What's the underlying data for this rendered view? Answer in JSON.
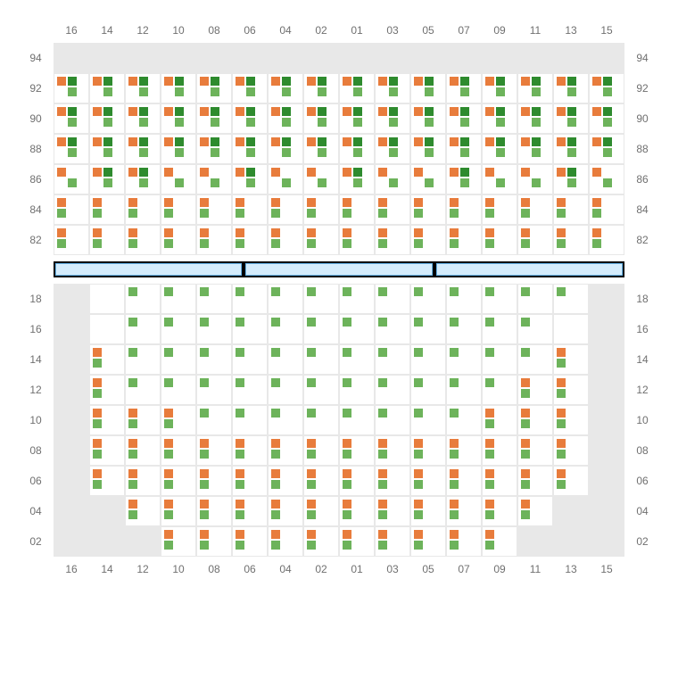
{
  "colors": {
    "orange": "#e87c3c",
    "green_light": "#6db35b",
    "green_dark": "#2e8b2e",
    "blank_bg": "#e8e8e8",
    "stage_border": "#68b4ea",
    "stage_fill": "#d4ecfc",
    "text": "#707070"
  },
  "cell_size": {
    "w": 40,
    "h": 34
  },
  "columns": [
    "16",
    "14",
    "12",
    "10",
    "08",
    "06",
    "04",
    "02",
    "01",
    "03",
    "05",
    "07",
    "09",
    "11",
    "13",
    "15"
  ],
  "top_section": {
    "rows": [
      "94",
      "92",
      "90",
      "88",
      "86",
      "84",
      "82"
    ],
    "grid_comment": "per cell: null=blank, '---'=empty cell, else 4 chars TL TR BL BR each one of O=orange G=green D=darkgreen -=empty",
    "grid": [
      [
        null,
        null,
        null,
        null,
        null,
        null,
        null,
        null,
        null,
        null,
        null,
        null,
        null,
        null,
        null,
        null
      ],
      [
        "OD-G",
        "OD-G",
        "OD-G",
        "OD-G",
        "OD-G",
        "OD-G",
        "OD-G",
        "OD-G",
        "OD-G",
        "OD-G",
        "OD-G",
        "OD-G",
        "OD-G",
        "OD-G",
        "OD-G",
        "OD-G"
      ],
      [
        "OD-G",
        "OD-G",
        "OD-G",
        "OD-G",
        "OD-G",
        "OD-G",
        "OD-G",
        "OD-G",
        "OD-G",
        "OD-G",
        "OD-G",
        "OD-G",
        "OD-G",
        "OD-G",
        "OD-G",
        "OD-G"
      ],
      [
        "OD-G",
        "OD-G",
        "OD-G",
        "OD-G",
        "OD-G",
        "OD-G",
        "OD-G",
        "OD-G",
        "OD-G",
        "OD-G",
        "OD-G",
        "OD-G",
        "OD-G",
        "OD-G",
        "OD-G",
        "OD-G"
      ],
      [
        "O--G",
        "OD-G",
        "OD-G",
        "O--G",
        "O--G",
        "OD-G",
        "O--G",
        "O--G",
        "OD-G",
        "O--G",
        "O--G",
        "OD-G",
        "O--G",
        "O--G",
        "OD-G",
        "O--G"
      ],
      [
        "O-G-",
        "O-G-",
        "O-G-",
        "O-G-",
        "O-G-",
        "O-G-",
        "O-G-",
        "O-G-",
        "O-G-",
        "O-G-",
        "O-G-",
        "O-G-",
        "O-G-",
        "O-G-",
        "O-G-",
        "O-G-"
      ],
      [
        "O-G-",
        "O-G-",
        "O-G-",
        "O-G-",
        "O-G-",
        "O-G-",
        "O-G-",
        "O-G-",
        "O-G-",
        "O-G-",
        "O-G-",
        "O-G-",
        "O-G-",
        "O-G-",
        "O-G-",
        "O-G-"
      ]
    ]
  },
  "stage": {
    "segments": 3
  },
  "bottom_section": {
    "rows": [
      "18",
      "16",
      "14",
      "12",
      "10",
      "08",
      "06",
      "04",
      "02"
    ],
    "grid": [
      [
        null,
        "---",
        "G---",
        "G---",
        "G---",
        "G---",
        "G---",
        "G---",
        "G---",
        "G---",
        "G---",
        "G---",
        "G---",
        "G---",
        "G---",
        null
      ],
      [
        null,
        "---",
        "G---",
        "G---",
        "G---",
        "G---",
        "G---",
        "G---",
        "G---",
        "G---",
        "G---",
        "G---",
        "G---",
        "G---",
        "---",
        null
      ],
      [
        null,
        "O-G-",
        "G---",
        "G---",
        "G---",
        "G---",
        "G---",
        "G---",
        "G---",
        "G---",
        "G---",
        "G---",
        "G---",
        "G---",
        "O-G-",
        null
      ],
      [
        null,
        "O-G-",
        "G---",
        "G---",
        "G---",
        "G---",
        "G---",
        "G---",
        "G---",
        "G---",
        "G---",
        "G---",
        "G---",
        "O-G-",
        "O-G-",
        null
      ],
      [
        null,
        "O-G-",
        "O-G-",
        "O-G-",
        "G---",
        "G---",
        "G---",
        "G---",
        "G---",
        "G---",
        "G---",
        "G---",
        "O-G-",
        "O-G-",
        "O-G-",
        null
      ],
      [
        null,
        "O-G-",
        "O-G-",
        "O-G-",
        "O-G-",
        "O-G-",
        "O-G-",
        "O-G-",
        "O-G-",
        "O-G-",
        "O-G-",
        "O-G-",
        "O-G-",
        "O-G-",
        "O-G-",
        null
      ],
      [
        null,
        "O-G-",
        "O-G-",
        "O-G-",
        "O-G-",
        "O-G-",
        "O-G-",
        "O-G-",
        "O-G-",
        "O-G-",
        "O-G-",
        "O-G-",
        "O-G-",
        "O-G-",
        "O-G-",
        null
      ],
      [
        null,
        null,
        "O-G-",
        "O-G-",
        "O-G-",
        "O-G-",
        "O-G-",
        "O-G-",
        "O-G-",
        "O-G-",
        "O-G-",
        "O-G-",
        "O-G-",
        "O-G-",
        null,
        null
      ],
      [
        null,
        null,
        null,
        "O-G-",
        "O-G-",
        "O-G-",
        "O-G-",
        "O-G-",
        "O-G-",
        "O-G-",
        "O-G-",
        "O-G-",
        "O-G-",
        null,
        null,
        null
      ]
    ]
  }
}
